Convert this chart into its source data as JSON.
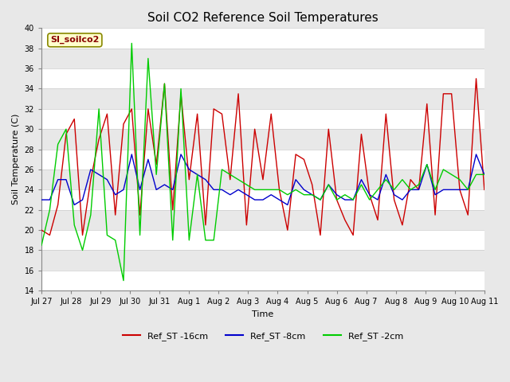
{
  "title": "Soil CO2 Reference Soil Temperatures",
  "xlabel": "Time",
  "ylabel": "Soil Temperature (C)",
  "ylim": [
    14,
    40
  ],
  "yticks": [
    14,
    16,
    18,
    20,
    22,
    24,
    26,
    28,
    30,
    32,
    34,
    36,
    38,
    40
  ],
  "xtick_labels": [
    "Jul 27",
    "Jul 28",
    "Jul 29",
    "Jul 30",
    "Jul 31",
    "Aug 1",
    "Aug 2",
    "Aug 3",
    "Aug 4",
    "Aug 5",
    "Aug 6",
    "Aug 7",
    "Aug 8",
    "Aug 9",
    "Aug 10",
    "Aug 11"
  ],
  "legend_label": "SI_soilco2",
  "legend_bg": "#ffffcc",
  "legend_border": "#cccc00",
  "series_labels": [
    "Ref_ST -16cm",
    "Ref_ST -8cm",
    "Ref_ST -2cm"
  ],
  "series_colors": [
    "#cc0000",
    "#0000cc",
    "#00cc00"
  ],
  "fig_bg": "#e8e8e8",
  "plot_bg": "#e8e8e8",
  "band_light": "#e8e8e8",
  "band_dark": "#d8d8d8",
  "grid_color": "#ffffff",
  "title_fontsize": 11,
  "axis_fontsize": 8,
  "tick_fontsize": 7,
  "red_y": [
    20.0,
    19.5,
    22.5,
    29.5,
    31.0,
    19.5,
    25.0,
    29.0,
    31.5,
    21.5,
    30.5,
    32.0,
    21.5,
    32.0,
    26.5,
    34.5,
    22.0,
    33.5,
    25.0,
    31.5,
    20.5,
    32.0,
    31.5,
    25.0,
    33.5,
    20.5,
    30.0,
    25.0,
    31.5,
    24.0,
    20.0,
    27.5,
    27.0,
    24.5,
    19.5,
    30.0,
    23.0,
    21.0,
    19.5,
    29.5,
    23.5,
    21.0,
    31.5,
    23.0,
    20.5,
    25.0,
    24.0,
    32.5,
    21.5,
    33.5,
    33.5,
    24.0,
    21.5,
    35.0,
    24.0
  ],
  "blue_y": [
    23.0,
    23.0,
    25.0,
    25.0,
    22.5,
    23.0,
    26.0,
    25.5,
    25.0,
    23.5,
    24.0,
    27.5,
    24.0,
    27.0,
    24.0,
    24.5,
    24.0,
    27.5,
    26.0,
    25.5,
    25.0,
    24.0,
    24.0,
    23.5,
    24.0,
    23.5,
    23.0,
    23.0,
    23.5,
    23.0,
    22.5,
    25.0,
    24.0,
    23.5,
    23.0,
    24.5,
    23.5,
    23.0,
    23.0,
    25.0,
    23.5,
    23.0,
    25.5,
    23.5,
    23.0,
    24.0,
    24.0,
    26.5,
    23.5,
    24.0,
    24.0,
    24.0,
    24.0,
    27.5,
    25.5
  ],
  "green_y": [
    18.5,
    22.0,
    28.5,
    30.0,
    20.5,
    18.0,
    21.5,
    32.0,
    19.5,
    19.0,
    15.0,
    38.5,
    19.5,
    37.0,
    25.5,
    34.5,
    19.0,
    34.0,
    19.0,
    25.5,
    19.0,
    19.0,
    26.0,
    25.5,
    25.0,
    24.5,
    24.0,
    24.0,
    24.0,
    24.0,
    23.5,
    24.0,
    23.5,
    23.5,
    23.0,
    24.5,
    23.0,
    23.5,
    23.0,
    24.5,
    23.0,
    24.0,
    25.0,
    24.0,
    25.0,
    24.0,
    24.5,
    26.5,
    24.0,
    26.0,
    25.5,
    25.0,
    24.0,
    25.5,
    25.5
  ]
}
